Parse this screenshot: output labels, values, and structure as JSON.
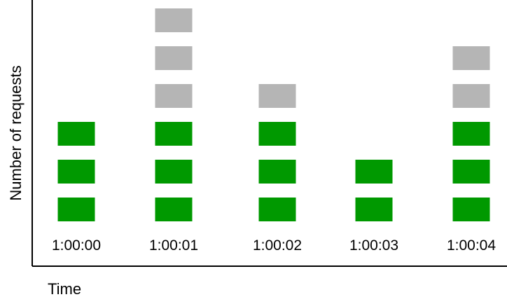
{
  "chart_data": {
    "type": "bar",
    "subtype": "stacked-unit-blocks",
    "xlabel": "Time",
    "ylabel": "Number of requests",
    "categories": [
      "1:00:00",
      "1:00:01",
      "1:00:02",
      "1:00:03",
      "1:00:04"
    ],
    "series": [
      {
        "values": [
          3,
          3,
          3,
          2,
          3
        ],
        "color": "#009900"
      },
      {
        "values": [
          0,
          3,
          1,
          0,
          2
        ],
        "color": "#b5b5b5"
      }
    ],
    "ylim": [
      0,
      6
    ],
    "grid": false,
    "legend": "none"
  }
}
